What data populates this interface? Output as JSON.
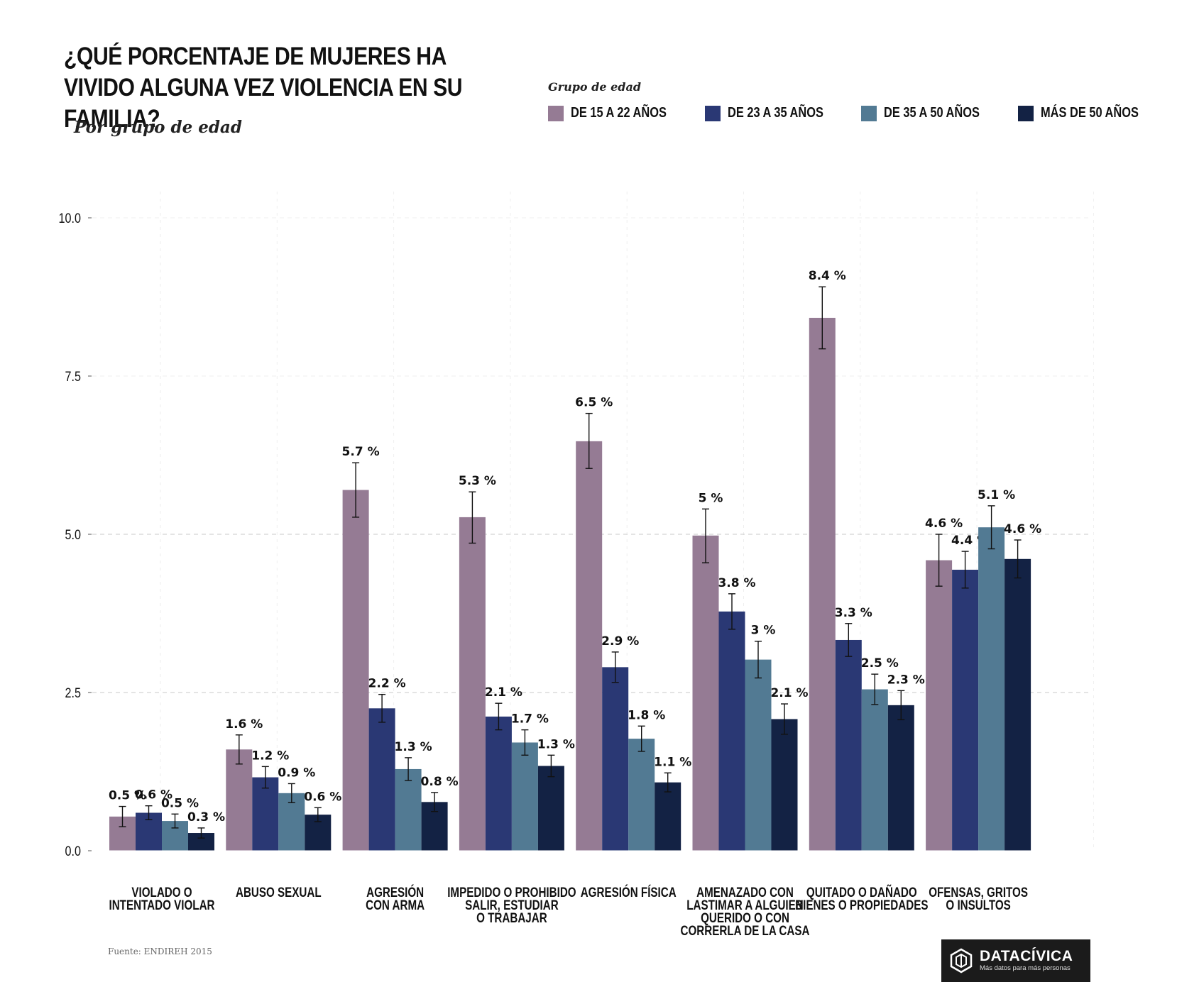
{
  "header": {
    "title": "¿QUÉ PORCENTAJE DE MUJERES HA VIVIDO ALGUNA VEZ VIOLENCIA EN SU FAMILIA?",
    "subtitle": "Por grupo de edad"
  },
  "legend": {
    "title": "Grupo de edad",
    "position": "top-right"
  },
  "footer": {
    "source": "Fuente: ENDIREH 2015"
  },
  "logo": {
    "name": "DATACÍVICA",
    "tagline": "Más datos para más personas"
  },
  "chart_data": {
    "type": "bar",
    "title": "¿QUÉ PORCENTAJE DE MUJERES HA VIVIDO ALGUNA VEZ VIOLENCIA EN SU FAMILIA?",
    "subtitle": "Por grupo de edad",
    "xlabel": "",
    "ylabel": "",
    "ylim": [
      0,
      10
    ],
    "yticks": [
      0,
      2.5,
      5,
      7.5,
      10
    ],
    "ytick_labels": [
      "0.0",
      "2.5",
      "5.0",
      "7.5",
      "10.0"
    ],
    "grid": "dashed horizontal",
    "legend_position": "top-right",
    "categories": [
      [
        "VIOLADO O",
        "INTENTADO VIOLAR"
      ],
      [
        "ABUSO SEXUAL"
      ],
      [
        "AGRESIÓN",
        "CON ARMA"
      ],
      [
        "IMPEDIDO O PROHIBIDO",
        "SALIR, ESTUDIAR",
        "O TRABAJAR"
      ],
      [
        "AGRESIÓN FÍSICA"
      ],
      [
        "AMENAZADO CON",
        "LASTIMAR A ALGUIEN",
        "QUERIDO O CON",
        "CORRERLA DE LA CASA"
      ],
      [
        "QUITADO O DAÑADO",
        "BIENES O PROPIEDADES"
      ],
      [
        "OFENSAS, GRITOS",
        "O INSULTOS"
      ]
    ],
    "series": [
      {
        "name": "DE 15 A 22 AÑOS",
        "color": "#957b94",
        "values": [
          0.54,
          1.6,
          5.7,
          5.27,
          6.47,
          4.98,
          8.42,
          4.59
        ],
        "labels": [
          "0.5 %",
          "1.6 %",
          "5.7 %",
          "5.3 %",
          "6.5 %",
          "5 %",
          "8.4 %",
          "4.6 %"
        ],
        "err_low": [
          0.38,
          1.37,
          5.27,
          4.86,
          6.04,
          4.55,
          7.93,
          4.18
        ],
        "err_high": [
          0.7,
          1.83,
          6.13,
          5.67,
          6.91,
          5.4,
          8.91,
          5.0
        ]
      },
      {
        "name": "DE 23 A 35 AÑOS",
        "color": "#2a3874",
        "values": [
          0.6,
          1.16,
          2.25,
          2.12,
          2.9,
          3.78,
          3.33,
          4.44
        ],
        "labels": [
          "0.6 %",
          "1.2 %",
          "2.2 %",
          "2.1 %",
          "2.9 %",
          "3.8 %",
          "3.3 %",
          "4.4 %"
        ],
        "err_low": [
          0.49,
          0.99,
          2.03,
          1.91,
          2.66,
          3.5,
          3.07,
          4.15
        ],
        "err_high": [
          0.71,
          1.33,
          2.47,
          2.33,
          3.14,
          4.06,
          3.59,
          4.73
        ]
      },
      {
        "name": "DE 35 A 50 AÑOS",
        "color": "#527a93",
        "values": [
          0.47,
          0.91,
          1.29,
          1.71,
          1.77,
          3.02,
          2.55,
          5.11
        ],
        "labels": [
          "0.5 %",
          "0.9 %",
          "1.3 %",
          "1.7 %",
          "1.8 %",
          "3 %",
          "2.5 %",
          "5.1 %"
        ],
        "err_low": [
          0.36,
          0.76,
          1.11,
          1.51,
          1.57,
          2.73,
          2.31,
          4.77
        ],
        "err_high": [
          0.58,
          1.06,
          1.47,
          1.91,
          1.97,
          3.31,
          2.79,
          5.45
        ]
      },
      {
        "name": "MÁS DE 50 AÑOS",
        "color": "#132244",
        "values": [
          0.28,
          0.57,
          0.77,
          1.34,
          1.08,
          2.08,
          2.3,
          4.61
        ],
        "labels": [
          "0.3 %",
          "0.6 %",
          "0.8 %",
          "1.3 %",
          "1.1 %",
          "2.1 %",
          "2.3 %",
          "4.6 %"
        ],
        "err_low": [
          0.2,
          0.46,
          0.62,
          1.17,
          0.93,
          1.84,
          2.07,
          4.31
        ],
        "err_high": [
          0.36,
          0.68,
          0.92,
          1.51,
          1.23,
          2.32,
          2.53,
          4.91
        ]
      }
    ]
  }
}
